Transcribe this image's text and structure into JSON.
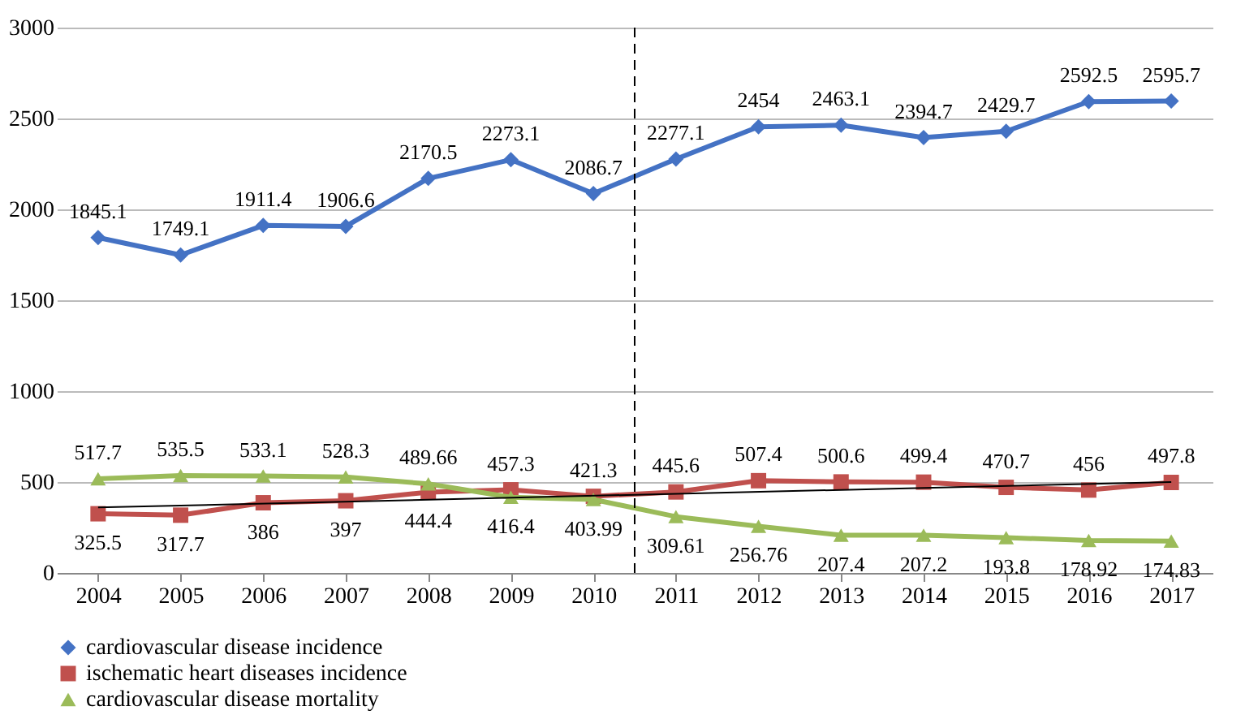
{
  "chart_data": {
    "type": "line",
    "x": [
      2004,
      2005,
      2006,
      2007,
      2008,
      2009,
      2010,
      2011,
      2012,
      2013,
      2014,
      2015,
      2016,
      2017
    ],
    "xlim": [
      2003.5,
      2017.5
    ],
    "xticks": [
      2004,
      2005,
      2006,
      2007,
      2008,
      2009,
      2010,
      2011,
      2012,
      2013,
      2014,
      2015,
      2016,
      2017
    ],
    "ylim": [
      0,
      3000
    ],
    "yticks": [
      0,
      500,
      1000,
      1500,
      2000,
      2500,
      3000
    ],
    "grid": "y",
    "legend": "bottom",
    "data_labels": true,
    "series": [
      {
        "name": "cardiovascular disease incidence",
        "color": "#4472c4",
        "marker": "diamond",
        "values": [
          1845.1,
          1749.1,
          1911.4,
          1906.6,
          2170.5,
          2273.1,
          2086.7,
          2277.1,
          2454,
          2463.1,
          2394.7,
          2429.7,
          2592.5,
          2595.7
        ]
      },
      {
        "name": "ischematic heart diseases incidence",
        "color": "#c0504d",
        "marker": "square",
        "values": [
          325.5,
          317.7,
          386,
          397,
          444.4,
          457.3,
          421.3,
          445.6,
          507.4,
          500.6,
          499.4,
          470.7,
          456,
          497.8
        ]
      },
      {
        "name": "cardiovascular disease mortality",
        "color": "#9bbb59",
        "marker": "triangle",
        "values": [
          517.7,
          535.5,
          533.1,
          528.3,
          489.66,
          416.4,
          403.99,
          309.61,
          256.76,
          207.4,
          207.2,
          193.8,
          178.92,
          174.83
        ]
      },
      {
        "type": "line",
        "color": "#000000",
        "marker": "none",
        "x": [
          2004,
          2017
        ],
        "values": [
          360,
          500
        ],
        "value_labels": [
          null,
          null
        ]
      }
    ],
    "ref_lines": [
      {
        "axis": "x",
        "value": 2010.5,
        "line_style": "dashed",
        "color": "#000000"
      }
    ]
  }
}
